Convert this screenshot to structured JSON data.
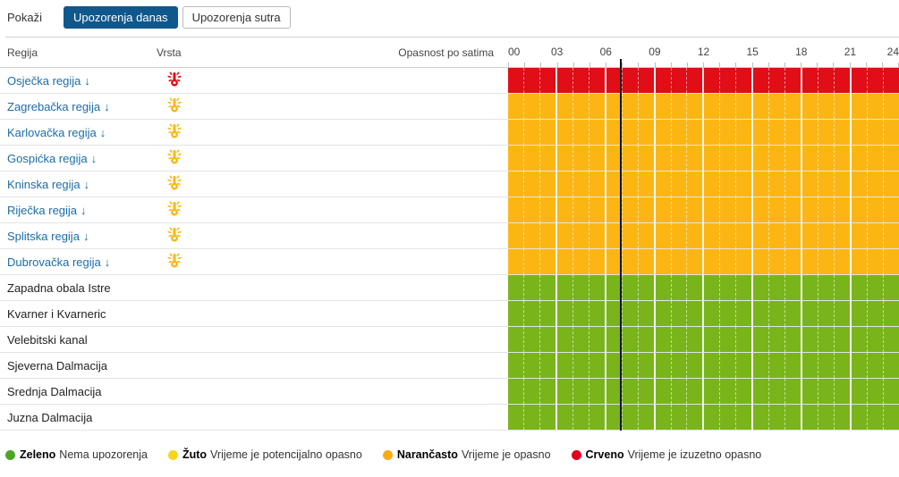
{
  "toolbar": {
    "show_label": "Pokaži",
    "tabs": [
      {
        "label": "Upozorenja danas",
        "active": true
      },
      {
        "label": "Upozorenja sutra",
        "active": false
      }
    ]
  },
  "table": {
    "col_region": "Regija",
    "col_type": "Vrsta",
    "col_hours": "Opasnost po satima",
    "hour_labels": [
      "00",
      "03",
      "06",
      "09",
      "12",
      "15",
      "18",
      "21",
      "24"
    ],
    "current_time_hour": 6.9,
    "link_arrow": "↓",
    "rows": [
      {
        "region": "Osječka regija",
        "link": true,
        "icon": "heat-warning-icon",
        "level": "red"
      },
      {
        "region": "Zagrebačka regija",
        "link": true,
        "icon": "heat-warning-icon",
        "level": "orange"
      },
      {
        "region": "Karlovačka regija",
        "link": true,
        "icon": "heat-warning-icon",
        "level": "orange"
      },
      {
        "region": "Gospićka regija",
        "link": true,
        "icon": "heat-warning-icon",
        "level": "orange"
      },
      {
        "region": "Kninska regija",
        "link": true,
        "icon": "heat-warning-icon",
        "level": "orange"
      },
      {
        "region": "Riječka regija",
        "link": true,
        "icon": "heat-warning-icon",
        "level": "orange"
      },
      {
        "region": "Splitska regija",
        "link": true,
        "icon": "heat-warning-icon",
        "level": "orange"
      },
      {
        "region": "Dubrovačka regija",
        "link": true,
        "icon": "heat-warning-icon",
        "level": "orange"
      },
      {
        "region": "Zapadna obala Istre",
        "link": false,
        "icon": null,
        "level": "green"
      },
      {
        "region": "Kvarner i Kvarneric",
        "link": false,
        "icon": null,
        "level": "green"
      },
      {
        "region": "Velebitski kanal",
        "link": false,
        "icon": null,
        "level": "green"
      },
      {
        "region": "Sjeverna Dalmacija",
        "link": false,
        "icon": null,
        "level": "green"
      },
      {
        "region": "Srednja Dalmacija",
        "link": false,
        "icon": null,
        "level": "green"
      },
      {
        "region": "Juzna Dalmacija",
        "link": false,
        "icon": null,
        "level": "green"
      }
    ]
  },
  "legend": {
    "items": [
      {
        "color": "#4aa723",
        "label": "Zeleno",
        "text": "Nema upozorenja"
      },
      {
        "color": "#f6d51e",
        "label": "Žuto",
        "text": "Vrijeme je potencijalno opasno"
      },
      {
        "color": "#f9ab14",
        "label": "Narančasto",
        "text": "Vrijeme je opasno"
      },
      {
        "color": "#e2001a",
        "label": "Crveno",
        "text": "Vrijeme je izuzetno opasno"
      }
    ]
  },
  "colors": {
    "red": "#e10d17",
    "orange": "#fcb614",
    "green": "#79b51a",
    "link": "#1b6ca8",
    "active_tab_bg": "#10578b",
    "time_line": "#111111"
  }
}
